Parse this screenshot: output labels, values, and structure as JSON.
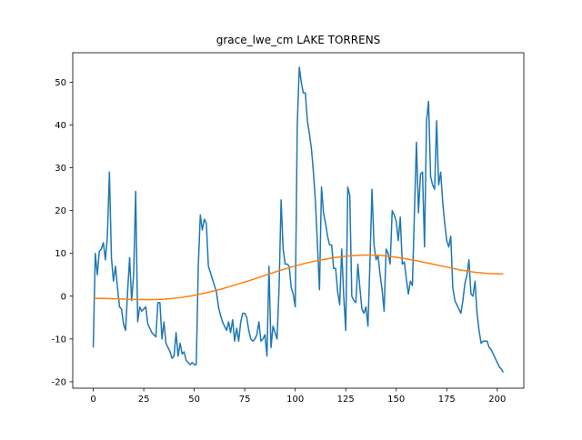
{
  "chart_data": {
    "type": "line",
    "title": "grace_lwe_cm LAKE TORRENS",
    "x": [
      0,
      1,
      2,
      3,
      4,
      5,
      6,
      7,
      8,
      9,
      10,
      11,
      12,
      13,
      14,
      15,
      16,
      17,
      18,
      19,
      20,
      21,
      22,
      23,
      24,
      25,
      26,
      27,
      28,
      29,
      30,
      31,
      32,
      33,
      34,
      35,
      36,
      37,
      38,
      39,
      40,
      41,
      42,
      43,
      44,
      45,
      46,
      47,
      48,
      49,
      50,
      51,
      52,
      53,
      54,
      55,
      56,
      57,
      58,
      59,
      60,
      61,
      62,
      63,
      64,
      65,
      66,
      67,
      68,
      69,
      70,
      71,
      72,
      73,
      74,
      75,
      76,
      77,
      78,
      79,
      80,
      81,
      82,
      83,
      84,
      85,
      86,
      87,
      88,
      89,
      90,
      91,
      92,
      93,
      94,
      95,
      96,
      97,
      98,
      99,
      100,
      101,
      102,
      103,
      104,
      105,
      106,
      107,
      108,
      109,
      110,
      111,
      112,
      113,
      114,
      115,
      116,
      117,
      118,
      119,
      120,
      121,
      122,
      123,
      124,
      125,
      126,
      127,
      128,
      129,
      130,
      131,
      132,
      133,
      134,
      135,
      136,
      137,
      138,
      139,
      140,
      141,
      142,
      143,
      144,
      145,
      146,
      147,
      148,
      149,
      150,
      151,
      152,
      153,
      154,
      155,
      156,
      157,
      158,
      159,
      160,
      161,
      162,
      163,
      164,
      165,
      166,
      167,
      168,
      169,
      170,
      171,
      172,
      173,
      174,
      175,
      176,
      177,
      178,
      179,
      180,
      181,
      182,
      183,
      184,
      185,
      186,
      187,
      188,
      189,
      190,
      191,
      192,
      193,
      194,
      195,
      196,
      197,
      198,
      199,
      200,
      201,
      202,
      203
    ],
    "series": [
      {
        "color": "#1f77b4",
        "values": [
          -12,
          10,
          5,
          10.5,
          11,
          12.5,
          8.5,
          14,
          29,
          9,
          3.5,
          7,
          2,
          -2.5,
          -3,
          -6.5,
          -8,
          1,
          9,
          -1,
          5,
          24.5,
          -6,
          -2.5,
          -3.5,
          -3,
          -2.5,
          -6.5,
          -7.5,
          -8.5,
          -9,
          -9.5,
          -1.5,
          -1.5,
          -10,
          -6,
          -11,
          -12,
          -13,
          -14.5,
          -14,
          -8.5,
          -14,
          -11,
          -13.5,
          -13,
          -15,
          -15.5,
          -16,
          -15.5,
          -16,
          -16,
          7,
          19,
          15.5,
          18,
          17,
          7,
          5.5,
          4,
          2.5,
          1,
          -2.5,
          -4.5,
          -6,
          -7,
          -8,
          -6,
          -8.5,
          -5.5,
          -10.5,
          -7.5,
          -10.5,
          -6,
          -4,
          -4,
          -5,
          -8,
          -10,
          -10.5,
          -10,
          -9,
          -6,
          -10.5,
          -10,
          -9,
          -14,
          7,
          -12,
          -7,
          -8.5,
          -10,
          2,
          22.5,
          11,
          7.5,
          7.5,
          7,
          2,
          0.5,
          -2.5,
          40,
          53.5,
          50,
          47.5,
          47.5,
          41,
          38,
          34.5,
          29,
          22,
          12,
          1.5,
          25.5,
          19.5,
          17,
          14,
          12,
          12,
          6.5,
          6.5,
          1,
          -2,
          11,
          0,
          -8,
          25.5,
          23.5,
          0,
          -1,
          -1.5,
          7.5,
          2,
          -3,
          -4,
          -2.5,
          -7,
          8,
          25,
          12,
          8.5,
          9.5,
          5,
          1.5,
          -3.5,
          11,
          10,
          7.5,
          20,
          19,
          17.5,
          13,
          18.5,
          7.5,
          8,
          4,
          0.5,
          3.5,
          2.5,
          19.5,
          36,
          19.5,
          28.5,
          29,
          11.5,
          41,
          45.5,
          28,
          26,
          25,
          41,
          26,
          29,
          22,
          17,
          13,
          11.5,
          14,
          2,
          -1,
          -2,
          -3,
          -4,
          -1,
          3,
          5,
          8.5,
          0.5,
          0,
          3.5,
          -4,
          -8,
          -11,
          -10.5,
          -10.5,
          -10.5,
          -12,
          -12.5,
          -13.5,
          -14.5,
          -15.5,
          -16.5,
          -17,
          -17.8
        ]
      },
      {
        "color": "#ff7f0e",
        "x": [
          0,
          7,
          14,
          21,
          28,
          35,
          42,
          49,
          56,
          63,
          70,
          77,
          84,
          91,
          98,
          105,
          112,
          119,
          126,
          133,
          140,
          147,
          154,
          161,
          168,
          175,
          182,
          189,
          196,
          203
        ],
        "values": [
          -0.5,
          -0.55,
          -0.65,
          -0.75,
          -0.8,
          -0.7,
          -0.4,
          0.1,
          0.8,
          1.6,
          2.6,
          3.6,
          4.7,
          5.8,
          6.8,
          7.7,
          8.4,
          9.0,
          9.4,
          9.6,
          9.6,
          9.3,
          8.8,
          8.2,
          7.5,
          6.8,
          6.1,
          5.6,
          5.3,
          5.2
        ]
      }
    ],
    "xlim": [
      -10.15,
      213.15
    ],
    "ylim": [
      -21.5,
      56.9
    ],
    "xticks": [
      0,
      25,
      50,
      75,
      100,
      125,
      150,
      175,
      200
    ],
    "yticks": [
      -20,
      -10,
      0,
      10,
      20,
      30,
      40,
      50
    ]
  }
}
